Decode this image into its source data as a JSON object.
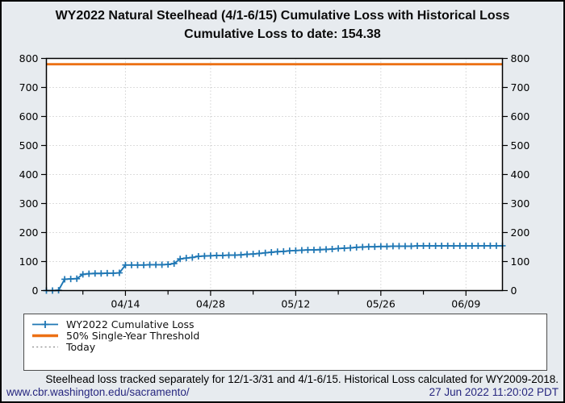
{
  "title": {
    "line1": "WY2022 Natural Steelhead (4/1-6/15) Cumulative Loss with Historical Loss",
    "line2": "Cumulative Loss to date: 154.38"
  },
  "colors": {
    "page_background": "#e7ebef",
    "plot_background": "#ffffff",
    "series_blue": "#1f77b4",
    "threshold_orange": "#ec7014",
    "today_gray": "#8c8c8c",
    "grid_gray": "#b9b9b9",
    "link_navy": "#26267f"
  },
  "legend": {
    "items": [
      {
        "label": "WY2022 Cumulative Loss",
        "color": "#1f77b4",
        "style": "line-plus-marker"
      },
      {
        "label": "50% Single-Year Threshold",
        "color": "#ec7014",
        "style": "thick-line"
      },
      {
        "label": "Today",
        "color": "#8c8c8c",
        "style": "dotted-line"
      }
    ]
  },
  "footer": {
    "note": "Steelhead loss tracked separately for 12/1-3/31 and 4/1-6/15. Historical Loss calculated for WY2009-2018.",
    "link": "www.cbr.washington.edu/sacramento/",
    "timestamp": "27 Jun 2022 11:20:02 PDT"
  },
  "chart_data": {
    "type": "line",
    "title": "WY2022 Natural Steelhead (4/1-6/15) Cumulative Loss with Historical Loss",
    "subtitle": "Cumulative Loss to date: 154.38",
    "cumulative_loss_to_date": 154.38,
    "ylim": [
      0,
      800
    ],
    "yticks": [
      0,
      100,
      200,
      300,
      400,
      500,
      600,
      700,
      800
    ],
    "y_axis_labels_both_sides": true,
    "x_start": "04/01",
    "x_end": "06/15",
    "x_major_ticks": [
      "04/14",
      "04/28",
      "05/12",
      "05/26",
      "06/09"
    ],
    "x_minor_ticks": [
      "04/07",
      "04/21",
      "05/05",
      "05/19",
      "06/02"
    ],
    "grid": "dotted",
    "threshold_label": "50% Single-Year Threshold",
    "threshold_value": 780,
    "threshold_color": "#ec7014",
    "today_label": "Today",
    "series": [
      {
        "name": "WY2022 Cumulative Loss",
        "color": "#1f77b4",
        "marker": "plus",
        "points": [
          [
            "04/01",
            0
          ],
          [
            "04/02",
            0
          ],
          [
            "04/03",
            1
          ],
          [
            "04/04",
            39
          ],
          [
            "04/05",
            40
          ],
          [
            "04/06",
            41
          ],
          [
            "04/07",
            56
          ],
          [
            "04/08",
            58
          ],
          [
            "04/09",
            59
          ],
          [
            "04/10",
            59
          ],
          [
            "04/11",
            60
          ],
          [
            "04/12",
            60
          ],
          [
            "04/13",
            61
          ],
          [
            "04/14",
            88
          ],
          [
            "04/15",
            88
          ],
          [
            "04/16",
            88
          ],
          [
            "04/17",
            88
          ],
          [
            "04/18",
            89
          ],
          [
            "04/19",
            89
          ],
          [
            "04/20",
            89
          ],
          [
            "04/21",
            90
          ],
          [
            "04/22",
            93
          ],
          [
            "04/23",
            109
          ],
          [
            "04/24",
            112
          ],
          [
            "04/25",
            114
          ],
          [
            "04/26",
            118
          ],
          [
            "04/27",
            119
          ],
          [
            "04/28",
            120
          ],
          [
            "04/29",
            121
          ],
          [
            "04/30",
            121
          ],
          [
            "05/01",
            122
          ],
          [
            "05/02",
            122
          ],
          [
            "05/03",
            123
          ],
          [
            "05/04",
            125
          ],
          [
            "05/05",
            126
          ],
          [
            "05/06",
            128
          ],
          [
            "05/07",
            130
          ],
          [
            "05/08",
            132
          ],
          [
            "05/09",
            134
          ],
          [
            "05/10",
            135
          ],
          [
            "05/11",
            137
          ],
          [
            "05/12",
            138
          ],
          [
            "05/13",
            139
          ],
          [
            "05/14",
            140
          ],
          [
            "05/15",
            140
          ],
          [
            "05/16",
            141
          ],
          [
            "05/17",
            142
          ],
          [
            "05/18",
            143
          ],
          [
            "05/19",
            145
          ],
          [
            "05/20",
            146
          ],
          [
            "05/21",
            147
          ],
          [
            "05/22",
            149
          ],
          [
            "05/23",
            150
          ],
          [
            "05/24",
            151
          ],
          [
            "05/25",
            151
          ],
          [
            "05/26",
            152
          ],
          [
            "05/27",
            152
          ],
          [
            "05/28",
            153
          ],
          [
            "05/29",
            153
          ],
          [
            "05/30",
            153
          ],
          [
            "05/31",
            153
          ],
          [
            "06/01",
            154
          ],
          [
            "06/02",
            154
          ],
          [
            "06/03",
            154
          ],
          [
            "06/04",
            154
          ],
          [
            "06/05",
            154
          ],
          [
            "06/06",
            154
          ],
          [
            "06/07",
            154
          ],
          [
            "06/08",
            154
          ],
          [
            "06/09",
            154
          ],
          [
            "06/10",
            154
          ],
          [
            "06/11",
            154
          ],
          [
            "06/12",
            154.38
          ],
          [
            "06/13",
            154.38
          ],
          [
            "06/14",
            154.38
          ],
          [
            "06/15",
            154.38
          ]
        ]
      }
    ]
  }
}
